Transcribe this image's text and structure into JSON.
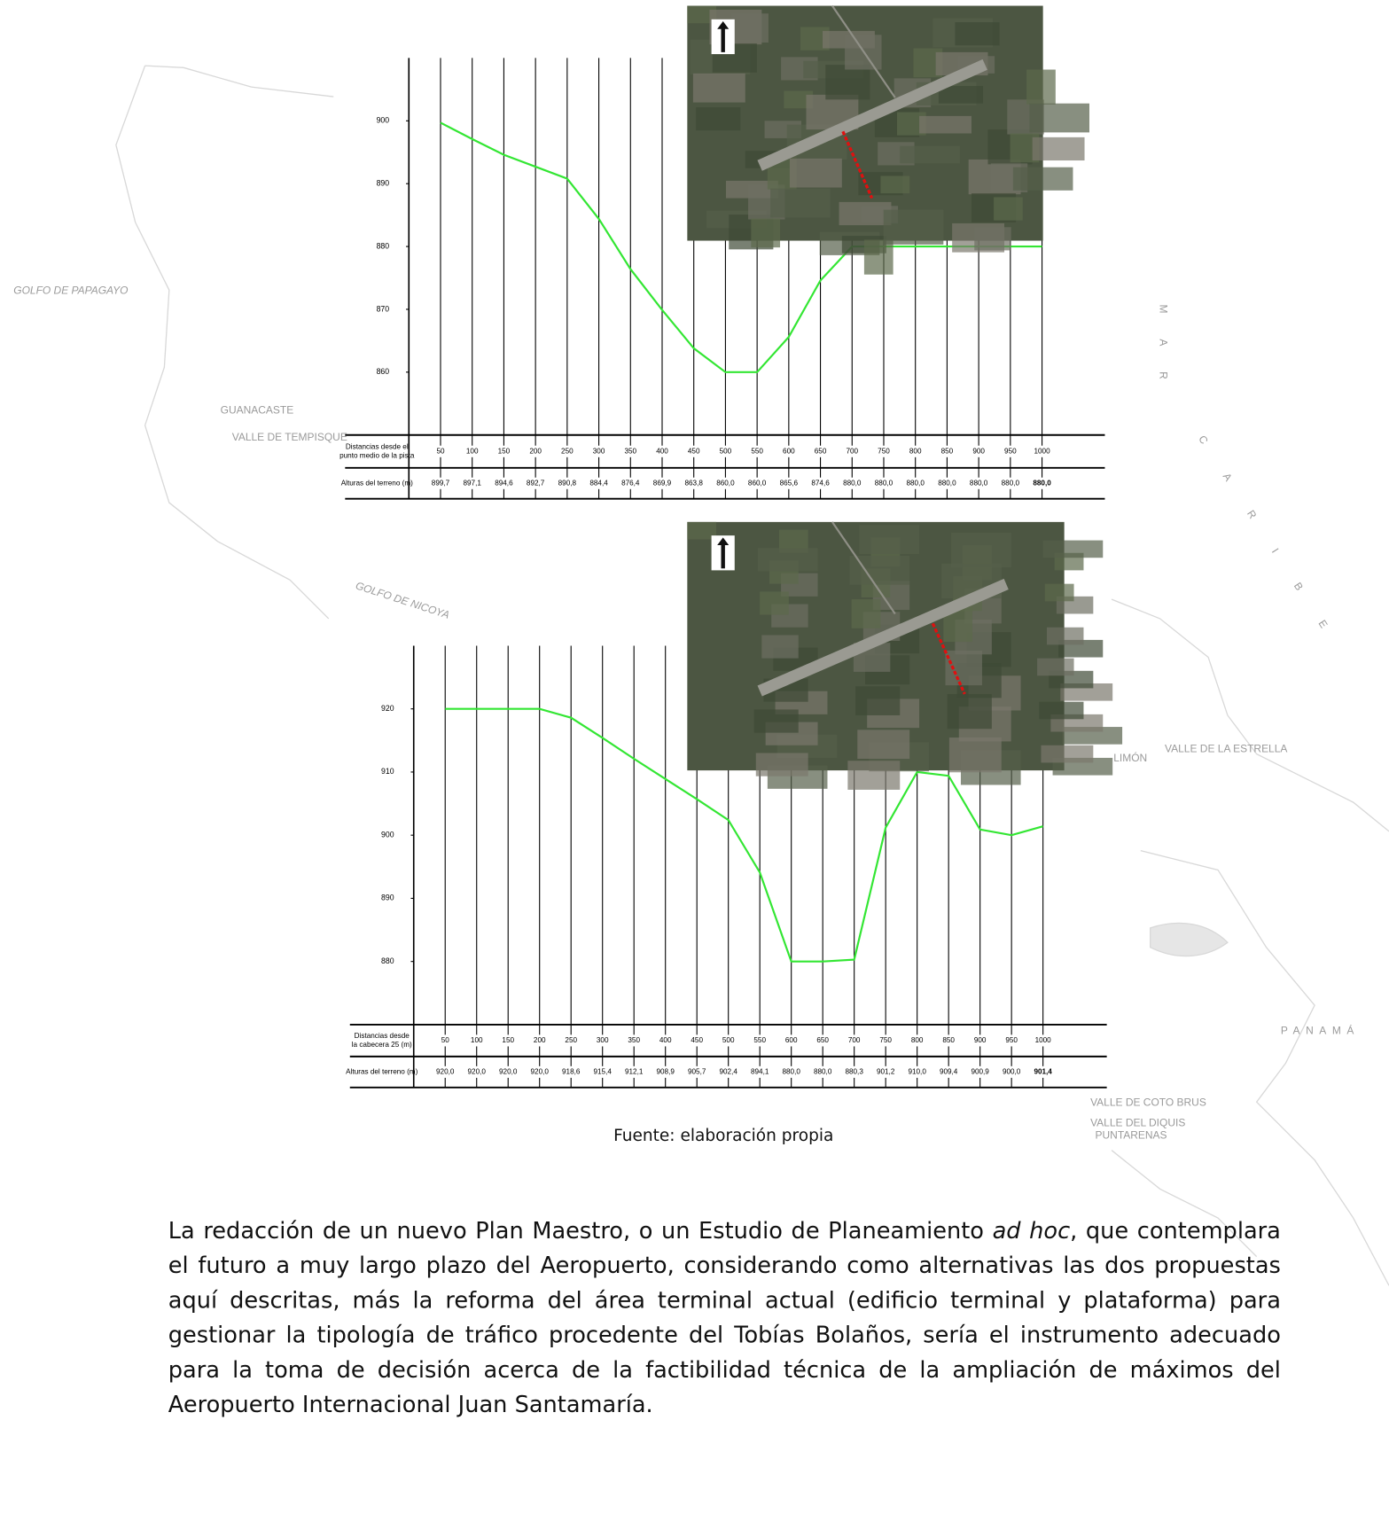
{
  "chart_data": [
    {
      "type": "line",
      "x": [
        50,
        100,
        150,
        200,
        250,
        300,
        350,
        400,
        450,
        500,
        550,
        600,
        650,
        700,
        750,
        800,
        850,
        900,
        950,
        1000
      ],
      "values": [
        899.7,
        897.1,
        894.6,
        892.7,
        890.8,
        884.4,
        876.4,
        869.9,
        863.8,
        860.0,
        860.0,
        865.6,
        874.6,
        880.0,
        880.0,
        880.0,
        880.0,
        880.0,
        880.0,
        880.0
      ],
      "value_labels": [
        "899,7",
        "897,1",
        "894,6",
        "892,7",
        "890,8",
        "884,4",
        "876,4",
        "869,9",
        "863,8",
        "860,0",
        "860,0",
        "865,6",
        "874,6",
        "880,0",
        "880,0",
        "880,0",
        "880,0",
        "880,0",
        "880,0",
        "880,0"
      ],
      "color": "#33e633",
      "xlim": [
        0,
        1000
      ],
      "ylim": [
        850,
        910
      ],
      "yticks": [
        860,
        870,
        880,
        890,
        900
      ],
      "distance_label_lines": [
        "Distancias desde el",
        "punto medio de la pista"
      ],
      "height_label": "Alturas del terreno (m)"
    },
    {
      "type": "line",
      "x": [
        50,
        100,
        150,
        200,
        250,
        300,
        350,
        400,
        450,
        500,
        550,
        600,
        650,
        700,
        750,
        800,
        850,
        900,
        950,
        1000
      ],
      "values": [
        920.0,
        920.0,
        920.0,
        920.0,
        918.6,
        915.4,
        912.1,
        908.9,
        905.7,
        902.4,
        894.1,
        880.0,
        880.0,
        880.3,
        901.2,
        910.0,
        909.4,
        900.9,
        900.0,
        901.4
      ],
      "value_labels": [
        "920,0",
        "920,0",
        "920,0",
        "920,0",
        "918,6",
        "915,4",
        "912,1",
        "908,9",
        "905,7",
        "902,4",
        "894,1",
        "880,0",
        "880,0",
        "880,3",
        "901,2",
        "910,0",
        "909,4",
        "900,9",
        "900,0",
        "901,4"
      ],
      "color": "#33e633",
      "xlim": [
        0,
        1000
      ],
      "ylim": [
        870,
        930
      ],
      "yticks": [
        880,
        890,
        900,
        910,
        920
      ],
      "distance_label_lines": [
        "Distancias desde",
        "la cabecera 25 (m)"
      ],
      "height_label": "Alturas del terreno (m)"
    }
  ],
  "background_map": {
    "labels": [
      "GOLFO DE PAPAGAYO",
      "GUANACASTE",
      "VALLE DE TEMPISQUE",
      "GOLFO DE NICOYA",
      "M A R",
      "C A R I B E",
      "LIMÓN",
      "VALLE DE LA ESTRELLA",
      "PANAMÁ",
      "VALLE DE COTO BRUS",
      "VALLE DEL DIQUIS",
      "PUNTARENAS"
    ]
  },
  "caption": "Fuente: elaboración propia",
  "paragraph": [
    "La redacción de un nuevo Plan Maestro, o un Estudio de Planeamiento ",
    "ad hoc",
    ", que contemplara el futuro a muy largo plazo del Aeropuerto, considerando como alternativas las dos propuestas aquí descritas, más la reforma del área terminal actual (edificio terminal y plataforma) para gestionar la tipología de tráfico procedente del Tobías Bolaños, sería el instrumento adecuado para la toma de decisión acerca de la factibilidad técnica de la ampliación de máximos del Aeropuerto Internacional Juan Santamaría."
  ]
}
